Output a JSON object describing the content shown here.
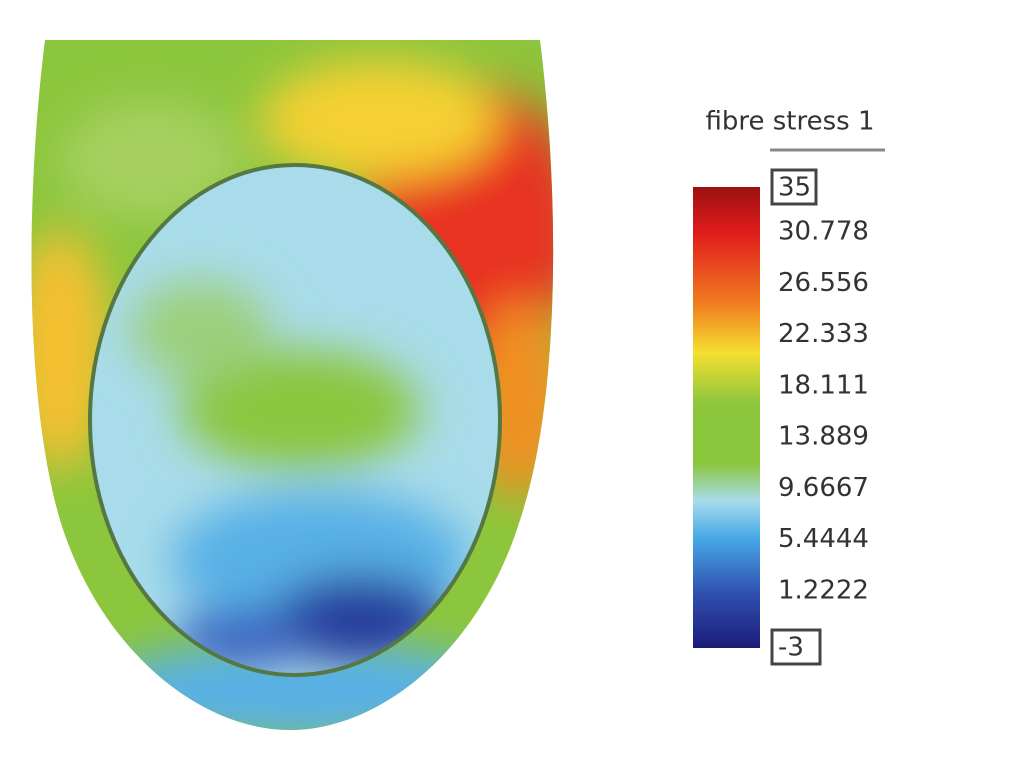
{
  "colorbar": {
    "title": "fibre stress 1",
    "max": "35",
    "ticks": [
      "30.778",
      "26.556",
      "22.333",
      "18.111",
      "13.889",
      "9.6667",
      "5.4444",
      "1.2222"
    ],
    "min": "-3"
  }
}
